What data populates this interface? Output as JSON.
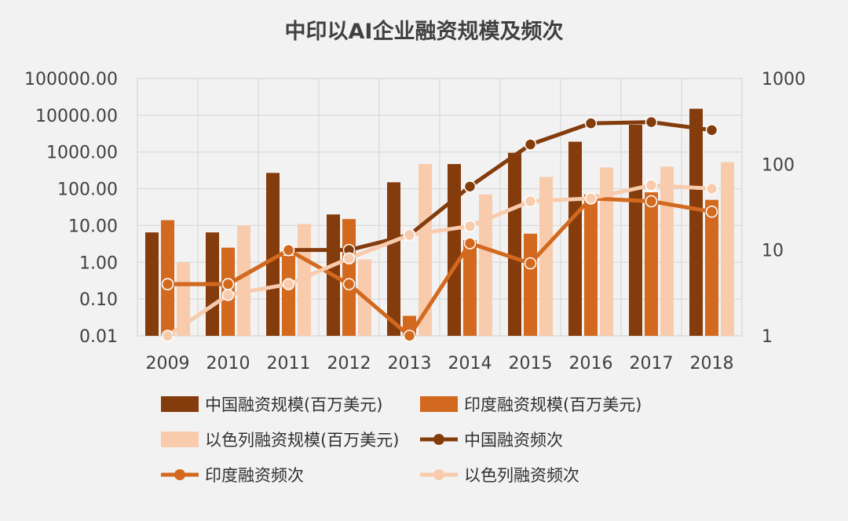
{
  "title": "中印以AI企业融资规模及频次",
  "chart_data": {
    "type": "bar",
    "title": "中印以AI企业融资规模及频次",
    "categories": [
      "2009",
      "2010",
      "2011",
      "2012",
      "2013",
      "2014",
      "2015",
      "2016",
      "2017",
      "2018"
    ],
    "y_left": {
      "scale": "log",
      "range": [
        0.01,
        100000
      ],
      "tick_labels": [
        "100000.00",
        "10000.00",
        "1000.00",
        "100.00",
        "10.00",
        "1.00",
        "0.10",
        "0.01"
      ]
    },
    "y_right": {
      "scale": "log",
      "range": [
        1,
        1000
      ],
      "tick_labels": [
        "1000",
        "100",
        "10",
        "1"
      ]
    },
    "grid": true,
    "legend_position": "bottom",
    "series": [
      {
        "name": "中国融资规模(百万美元)",
        "kind": "bar",
        "axis": "left",
        "color": "#843c0c",
        "values": [
          6.5,
          6.5,
          270,
          20,
          150,
          470,
          950,
          1900,
          5500,
          15000
        ]
      },
      {
        "name": "印度融资规模(百万美元)",
        "kind": "bar",
        "axis": "left",
        "color": "#d2691e",
        "values": [
          14,
          2.5,
          1.5,
          15,
          0.035,
          4,
          6,
          70,
          80,
          50
        ]
      },
      {
        "name": "以色列融资规模(百万美元)",
        "kind": "bar",
        "axis": "left",
        "color": "#f8cbad",
        "values": [
          1.0,
          10,
          11,
          1.2,
          470,
          70,
          210,
          380,
          400,
          530
        ]
      },
      {
        "name": "中国融资频次",
        "kind": "line",
        "axis": "right",
        "color": "#843c0c",
        "values": [
          4,
          4,
          10,
          10,
          15,
          55,
          170,
          300,
          310,
          250
        ]
      },
      {
        "name": "印度融资频次",
        "kind": "line",
        "axis": "right",
        "color": "#d2691e",
        "values": [
          4,
          4,
          10,
          4,
          1,
          12,
          7,
          40,
          37,
          28
        ]
      },
      {
        "name": "以色列融资频次",
        "kind": "line",
        "axis": "right",
        "color": "#f8cbad",
        "values": [
          1,
          3,
          4,
          8,
          15,
          19,
          37,
          40,
          57,
          52
        ]
      }
    ]
  }
}
